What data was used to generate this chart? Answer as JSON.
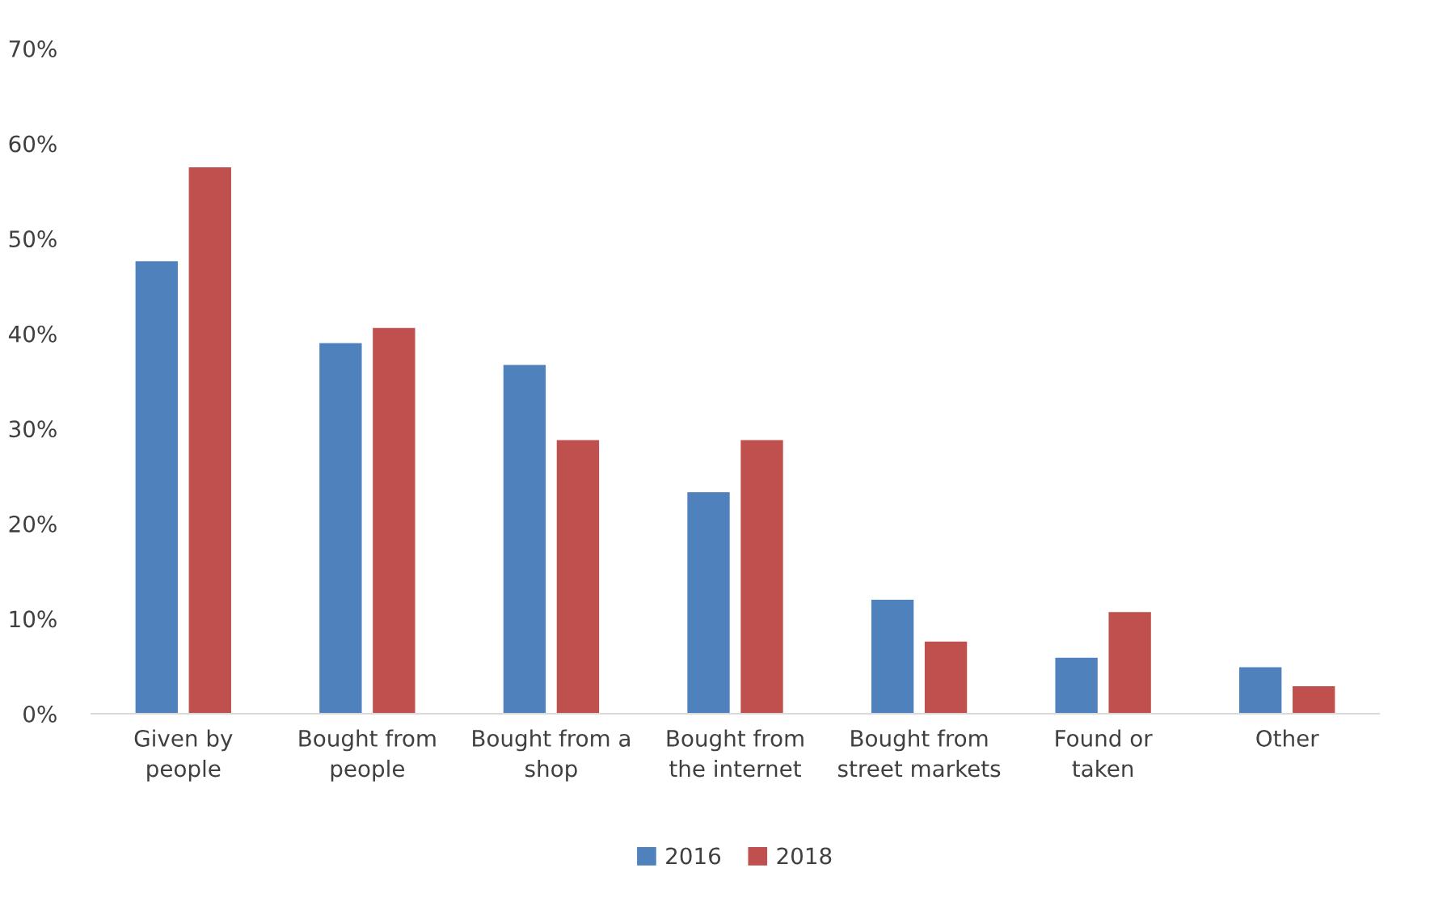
{
  "chart_data": {
    "type": "bar",
    "categories": [
      "Given by\npeople",
      "Bought from\npeople",
      "Bought from a\nshop",
      "Bought from\nthe internet",
      "Bought from\nstreet markets",
      "Found or\ntaken",
      "Other"
    ],
    "series": [
      {
        "name": "2016",
        "color": "#4f81bd",
        "values": [
          47.6,
          39,
          36.7,
          23.3,
          12,
          5.9,
          4.9
        ]
      },
      {
        "name": "2018",
        "color": "#c0504d",
        "values": [
          57.5,
          40.6,
          28.8,
          28.8,
          7.6,
          10.7,
          2.9
        ]
      }
    ],
    "ylim": [
      0,
      70
    ],
    "yticks": [
      {
        "value": 0,
        "label": "0%"
      },
      {
        "value": 10,
        "label": "10%"
      },
      {
        "value": 20,
        "label": "20%"
      },
      {
        "value": 30,
        "label": "30%"
      },
      {
        "value": 40,
        "label": "40%"
      },
      {
        "value": 50,
        "label": "50%"
      },
      {
        "value": 60,
        "label": "60%"
      },
      {
        "value": 70,
        "label": "70%"
      }
    ],
    "grid": false,
    "legend": "bottom"
  }
}
